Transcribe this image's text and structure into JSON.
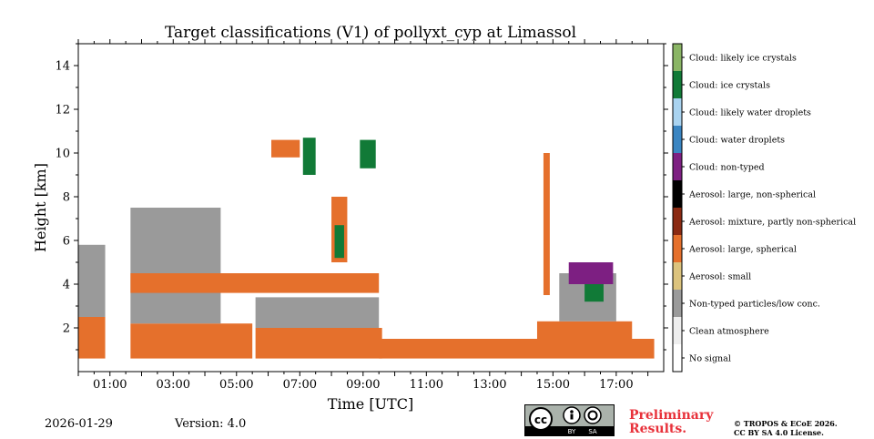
{
  "chart_data": {
    "type": "heatmap",
    "title": "Target classifications (V1) of pollyxt_cyp at Limassol",
    "xlabel": "Time [UTC]",
    "ylabel": "Height [km]",
    "xlim": [
      0,
      18.5
    ],
    "ylim": [
      0,
      15
    ],
    "xticks": [
      1,
      3,
      5,
      7,
      9,
      11,
      13,
      15,
      17
    ],
    "xtick_labels": [
      "01:00",
      "03:00",
      "05:00",
      "07:00",
      "09:00",
      "11:00",
      "13:00",
      "15:00",
      "17:00"
    ],
    "yticks": [
      2,
      4,
      6,
      8,
      10,
      12,
      14
    ],
    "ytick_labels": [
      "2",
      "4",
      "6",
      "8",
      "10",
      "12",
      "14"
    ],
    "classes": [
      {
        "label": "No signal",
        "color": "#ffffff"
      },
      {
        "label": "Clean atmosphere",
        "color": "#eeeeee"
      },
      {
        "label": "Non-typed particles/low conc.",
        "color": "#9a9a9a"
      },
      {
        "label": "Aerosol: small",
        "color": "#dcc37d"
      },
      {
        "label": "Aerosol: large, spherical",
        "color": "#e5702c"
      },
      {
        "label": "Aerosol: mixture, partly non-spherical",
        "color": "#8b2a12"
      },
      {
        "label": "Aerosol: large, non-spherical",
        "color": "#000000"
      },
      {
        "label": "Cloud: non-typed",
        "color": "#7d1f82"
      },
      {
        "label": "Cloud: water droplets",
        "color": "#3a85c2"
      },
      {
        "label": "Cloud: likely water droplets",
        "color": "#a9d3f0"
      },
      {
        "label": "Cloud: ice crystals",
        "color": "#117a37"
      },
      {
        "label": "Cloud: likely ice crystals",
        "color": "#8ab565"
      }
    ],
    "regions": [
      {
        "class": "Aerosol: large, spherical",
        "t0": 0,
        "t1": 0.85,
        "h0": 0.6,
        "h1": 2.5
      },
      {
        "class": "Non-typed particles/low conc.",
        "t0": 0,
        "t1": 0.85,
        "h0": 2.5,
        "h1": 5.8
      },
      {
        "class": "Aerosol: large, spherical",
        "t0": 1.65,
        "t1": 5.5,
        "h0": 0.6,
        "h1": 2.2
      },
      {
        "class": "Non-typed particles/low conc.",
        "t0": 1.65,
        "t1": 4.5,
        "h0": 2.2,
        "h1": 7.5
      },
      {
        "class": "Aerosol: large, spherical",
        "t0": 1.65,
        "t1": 9.5,
        "h0": 3.6,
        "h1": 4.5
      },
      {
        "class": "Aerosol: large, spherical",
        "t0": 5.6,
        "t1": 9.6,
        "h0": 0.6,
        "h1": 2.0
      },
      {
        "class": "Non-typed particles/low conc.",
        "t0": 5.6,
        "t1": 9.5,
        "h0": 2.0,
        "h1": 3.4
      },
      {
        "class": "Aerosol: large, spherical",
        "t0": 9.5,
        "t1": 18.2,
        "h0": 0.6,
        "h1": 1.5
      },
      {
        "class": "Aerosol: large, spherical",
        "t0": 14.5,
        "t1": 17.5,
        "h0": 1.0,
        "h1": 2.3
      },
      {
        "class": "Non-typed particles/low conc.",
        "t0": 15.2,
        "t1": 17.0,
        "h0": 2.3,
        "h1": 4.5
      },
      {
        "class": "Cloud: ice crystals",
        "t0": 7.1,
        "t1": 7.5,
        "h0": 9.0,
        "h1": 10.7
      },
      {
        "class": "Aerosol: large, spherical",
        "t0": 6.1,
        "t1": 7.0,
        "h0": 9.8,
        "h1": 10.6
      },
      {
        "class": "Aerosol: large, spherical",
        "t0": 8.0,
        "t1": 8.5,
        "h0": 5.0,
        "h1": 8.0
      },
      {
        "class": "Cloud: ice crystals",
        "t0": 8.1,
        "t1": 8.4,
        "h0": 5.2,
        "h1": 6.7
      },
      {
        "class": "Cloud: ice crystals",
        "t0": 8.9,
        "t1": 9.4,
        "h0": 9.3,
        "h1": 10.6
      },
      {
        "class": "Aerosol: large, spherical",
        "t0": 14.7,
        "t1": 14.9,
        "h0": 3.5,
        "h1": 10.0
      },
      {
        "class": "Cloud: ice crystals",
        "t0": 16.0,
        "t1": 16.6,
        "h0": 3.2,
        "h1": 4.5
      },
      {
        "class": "Cloud: non-typed",
        "t0": 15.5,
        "t1": 16.9,
        "h0": 4.0,
        "h1": 5.0
      }
    ]
  },
  "footer": {
    "date": "2026-01-29",
    "version": "Version: 4.0",
    "preliminary": "Preliminary Results.",
    "copyright_line1": "© TROPOS & ECoE 2026.",
    "copyright_line2": "CC BY SA 4.0 License.",
    "cc_icon": "cc-license-icon",
    "cc_by": "BY",
    "cc_sa": "SA"
  }
}
